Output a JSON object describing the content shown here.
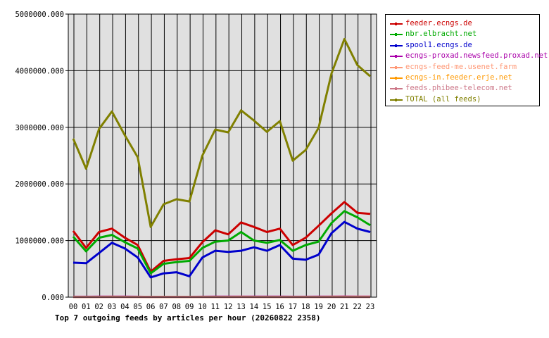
{
  "caption": "Top 7 outgoing feeds by articles per hour (20260822 2358)",
  "chart_data": {
    "type": "line",
    "title": "Top 7 outgoing feeds by articles per hour (20260822 2358)",
    "x": [
      "00",
      "01",
      "02",
      "03",
      "04",
      "05",
      "06",
      "07",
      "08",
      "09",
      "10",
      "11",
      "12",
      "13",
      "14",
      "15",
      "16",
      "17",
      "18",
      "19",
      "20",
      "21",
      "22",
      "23"
    ],
    "ylim": [
      0,
      5000000
    ],
    "yticks": [
      0,
      1000000,
      2000000,
      3000000,
      4000000,
      5000000
    ],
    "ytick_labels": [
      "0.000",
      "1000000.000",
      "2000000.000",
      "3000000.000",
      "4000000.000",
      "5000000.000"
    ],
    "grid": true,
    "legend_position": "top-right",
    "series": [
      {
        "name": "feeder.ecngs.de",
        "color": "#cc0000",
        "values": [
          1170000,
          870000,
          1150000,
          1210000,
          1050000,
          920000,
          450000,
          640000,
          670000,
          690000,
          970000,
          1180000,
          1110000,
          1320000,
          1240000,
          1150000,
          1210000,
          920000,
          1050000,
          1260000,
          1480000,
          1680000,
          1490000,
          1470000
        ]
      },
      {
        "name": "nbr.elbracht.net",
        "color": "#00aa00",
        "values": [
          1070000,
          810000,
          1050000,
          1100000,
          970000,
          860000,
          420000,
          590000,
          620000,
          640000,
          870000,
          980000,
          1000000,
          1150000,
          1000000,
          960000,
          1010000,
          820000,
          920000,
          980000,
          1310000,
          1520000,
          1410000,
          1270000
        ]
      },
      {
        "name": "spool1.ecngs.de",
        "color": "#0000cc",
        "values": [
          610000,
          600000,
          780000,
          960000,
          860000,
          700000,
          350000,
          420000,
          440000,
          370000,
          700000,
          820000,
          800000,
          820000,
          880000,
          820000,
          920000,
          680000,
          660000,
          750000,
          1130000,
          1330000,
          1210000,
          1150000
        ]
      },
      {
        "name": "ecngs-proxad.newsfeed.proxad.net",
        "color": "#aa00aa",
        "values": [
          8000,
          8000,
          9000,
          10000,
          9000,
          8000,
          5000,
          6000,
          6000,
          6000,
          8000,
          9000,
          9000,
          10000,
          9000,
          9000,
          9000,
          8000,
          8000,
          9000,
          10000,
          11000,
          10000,
          10000
        ]
      },
      {
        "name": "ecngs-feed-me.usenet.farm",
        "color": "#ff9977",
        "values": [
          6000,
          5000,
          6000,
          7000,
          6000,
          6000,
          4000,
          5000,
          5000,
          5000,
          6000,
          6000,
          6000,
          7000,
          6000,
          6000,
          6000,
          5000,
          6000,
          6000,
          7000,
          8000,
          7000,
          7000
        ]
      },
      {
        "name": "ecngs-in.feeder.erje.net",
        "color": "#ff9900",
        "values": [
          4000,
          4000,
          4000,
          5000,
          4000,
          4000,
          3000,
          3000,
          3000,
          3000,
          4000,
          4000,
          4000,
          5000,
          4000,
          4000,
          4000,
          4000,
          4000,
          4000,
          5000,
          5000,
          5000,
          5000
        ]
      },
      {
        "name": "feeds.phibee-telecom.net",
        "color": "#cc7788",
        "values": [
          3000,
          3000,
          3000,
          4000,
          3000,
          3000,
          2000,
          2000,
          2000,
          2000,
          3000,
          3000,
          3000,
          4000,
          3000,
          3000,
          3000,
          3000,
          3000,
          3000,
          4000,
          4000,
          4000,
          4000
        ]
      },
      {
        "name": "TOTAL (all feeds)",
        "color": "#808000",
        "values": [
          2800000,
          2270000,
          2970000,
          3280000,
          2860000,
          2470000,
          1240000,
          1640000,
          1730000,
          1690000,
          2500000,
          2960000,
          2910000,
          3300000,
          3120000,
          2920000,
          3110000,
          2410000,
          2600000,
          2990000,
          3950000,
          4560000,
          4100000,
          3900000
        ]
      }
    ]
  }
}
